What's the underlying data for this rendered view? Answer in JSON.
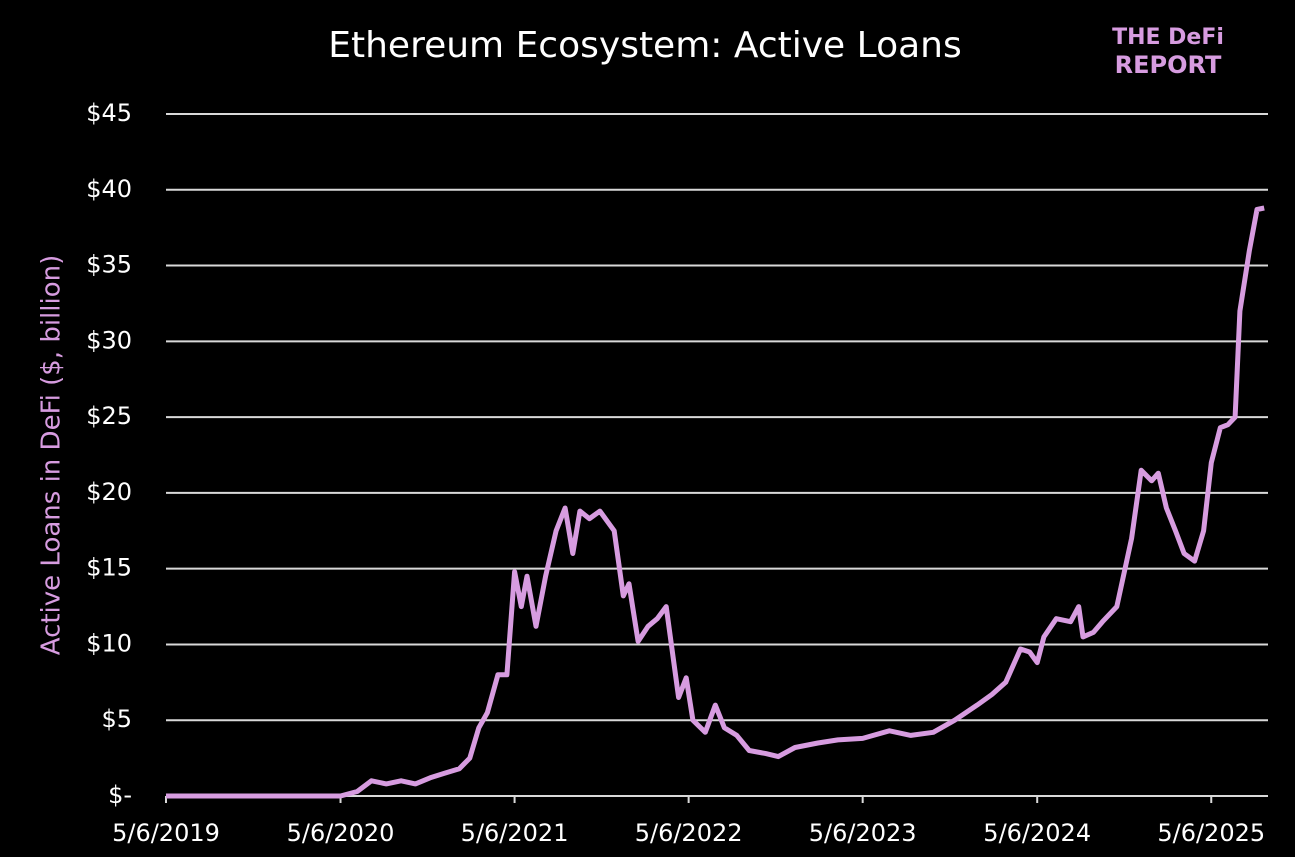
{
  "chart_data": {
    "type": "line",
    "title": "Ethereum Ecosystem: Active Loans",
    "ylabel": "Active Loans in DeFi ($, billion)",
    "logo": {
      "line1": "THE DeFi",
      "line2": "REPORT"
    },
    "x": [
      "2019-05-06",
      "2020-01-06",
      "2020-05-06",
      "2020-06-10",
      "2020-07-10",
      "2020-08-10",
      "2020-09-10",
      "2020-10-10",
      "2020-11-10",
      "2020-12-10",
      "2021-01-10",
      "2021-02-01",
      "2021-02-20",
      "2021-03-10",
      "2021-04-01",
      "2021-04-20",
      "2021-05-06",
      "2021-05-20",
      "2021-06-01",
      "2021-06-20",
      "2021-07-10",
      "2021-08-01",
      "2021-08-20",
      "2021-09-05",
      "2021-09-20",
      "2021-10-10",
      "2021-11-01",
      "2021-12-01",
      "2021-12-20",
      "2022-01-01",
      "2022-01-20",
      "2022-02-10",
      "2022-03-01",
      "2022-03-20",
      "2022-04-15",
      "2022-05-01",
      "2022-05-15",
      "2022-06-10",
      "2022-07-01",
      "2022-07-20",
      "2022-08-15",
      "2022-09-10",
      "2022-10-15",
      "2022-11-10",
      "2022-12-15",
      "2023-02-01",
      "2023-03-15",
      "2023-05-06",
      "2023-07-01",
      "2023-08-15",
      "2023-10-01",
      "2023-11-15",
      "2024-01-01",
      "2024-02-01",
      "2024-03-01",
      "2024-04-01",
      "2024-04-20",
      "2024-05-06",
      "2024-05-20",
      "2024-06-15",
      "2024-07-15",
      "2024-08-01",
      "2024-08-10",
      "2024-09-01",
      "2024-09-20",
      "2024-10-20",
      "2024-11-20",
      "2024-12-10",
      "2025-01-01",
      "2025-01-15",
      "2025-02-01",
      "2025-02-20",
      "2025-03-10",
      "2025-04-01",
      "2025-04-20",
      "2025-05-06",
      "2025-05-25",
      "2025-06-10",
      "2025-06-25",
      "2025-07-05",
      "2025-07-25",
      "2025-08-10",
      "2025-08-25"
    ],
    "series": [
      {
        "name": "Active Loans",
        "color": "#d79ce0",
        "values": [
          0,
          0,
          0,
          0.3,
          1.0,
          0.8,
          1.0,
          0.8,
          1.2,
          1.5,
          1.8,
          2.5,
          4.5,
          5.5,
          8,
          8,
          14.8,
          12.5,
          14.5,
          11.2,
          14.5,
          17.5,
          19,
          16,
          18.8,
          18.3,
          18.8,
          17.5,
          13.2,
          14,
          10.2,
          11.2,
          11.7,
          12.5,
          6.5,
          7.8,
          5,
          4.2,
          6,
          4.5,
          4,
          3,
          2.8,
          2.6,
          3.2,
          3.5,
          3.7,
          3.8,
          4.3,
          4,
          4.2,
          5,
          6,
          6.7,
          7.5,
          9.7,
          9.5,
          8.8,
          10.5,
          11.7,
          11.5,
          12.5,
          10.5,
          10.8,
          11.5,
          12.5,
          17,
          21.5,
          20.8,
          21.3,
          19,
          17.5,
          16,
          15.5,
          17.5,
          22,
          24.3,
          24.5,
          25,
          32,
          36,
          38.7,
          38.8
        ]
      }
    ],
    "xlim": [
      "2019-05-06",
      "2025-09-02"
    ],
    "xticks": [
      {
        "value": "2019-05-06",
        "label": "5/6/2019"
      },
      {
        "value": "2020-05-06",
        "label": "5/6/2020"
      },
      {
        "value": "2021-05-06",
        "label": "5/6/2021"
      },
      {
        "value": "2022-05-06",
        "label": "5/6/2022"
      },
      {
        "value": "2023-05-06",
        "label": "5/6/2023"
      },
      {
        "value": "2024-05-06",
        "label": "5/6/2024"
      },
      {
        "value": "2025-05-06",
        "label": "5/6/2025"
      }
    ],
    "ylim": [
      0,
      45
    ],
    "yticks": [
      {
        "value": 0,
        "label": "$-"
      },
      {
        "value": 5,
        "label": "$5"
      },
      {
        "value": 10,
        "label": "$10"
      },
      {
        "value": 15,
        "label": "$15"
      },
      {
        "value": 20,
        "label": "$20"
      },
      {
        "value": 25,
        "label": "$25"
      },
      {
        "value": 30,
        "label": "$30"
      },
      {
        "value": 35,
        "label": "$35"
      },
      {
        "value": 40,
        "label": "$40"
      },
      {
        "value": 45,
        "label": "$45"
      }
    ],
    "grid": true
  }
}
